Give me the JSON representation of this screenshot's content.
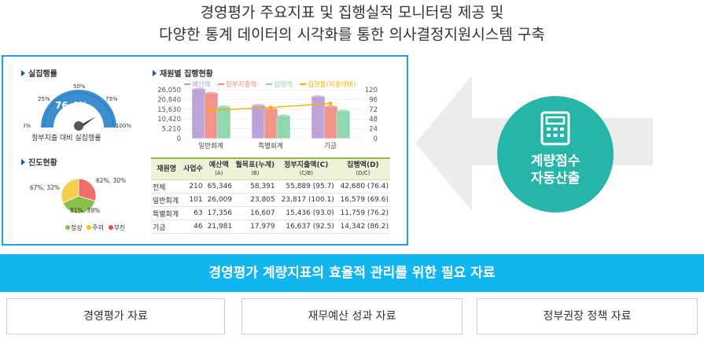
{
  "headline": {
    "line1": "경영평가 주요지표 및 집행실적 모니터링 제공 및",
    "line2": "다양한 통계 데이터의 시각화를 통한 의사결정지원시스템 구축"
  },
  "dashboard": {
    "gauge": {
      "title": "실집행률",
      "value_label": "76.4%",
      "value": 76.4,
      "ticks": [
        "0%",
        "25%",
        "50%",
        "75%",
        "100%"
      ],
      "caption": "정부지출 대비 실집행률"
    },
    "progress": {
      "title": "진도현황",
      "slices": [
        {
          "label": "62%, 30%",
          "value": 30,
          "color": "#f06e6a"
        },
        {
          "label": "81%, 39%",
          "value": 39,
          "color": "#8cc04c"
        },
        {
          "label": "67%, 32%",
          "value": 32,
          "color": "#f6d04d"
        }
      ],
      "legend": [
        {
          "name": "정상",
          "color": "#8cc04c"
        },
        {
          "name": "주의",
          "color": "#f6c400"
        },
        {
          "name": "부진",
          "color": "#e84b47"
        }
      ]
    },
    "chart_data": {
      "type": "bar",
      "title": "재원별 집행현황",
      "categories": [
        "일반회계",
        "특별회계",
        "기금"
      ],
      "series": [
        {
          "name": "예산액",
          "values": [
            26009,
            17356,
            21981
          ],
          "color": "#b59ad6"
        },
        {
          "name": "정부지출액",
          "values": [
            23817,
            15436,
            16637
          ],
          "color": "#f08a80"
        },
        {
          "name": "집행액",
          "values": [
            16579,
            11759,
            14342
          ],
          "color": "#86d3a8"
        }
      ],
      "line_series": {
        "name": "집행률(지출대비)",
        "values": [
          69.6,
          76.2,
          86.2
        ],
        "color": "#f6b400"
      },
      "y_ticks": [
        "26,050",
        "20,840",
        "15,630",
        "10,420",
        "5,210",
        "0"
      ],
      "y2_ticks": [
        "120",
        "96",
        "72",
        "48",
        "24",
        "0"
      ],
      "ylim": [
        0,
        26050
      ],
      "y2lim": [
        0,
        120
      ]
    },
    "table": {
      "headers": [
        {
          "main": "재원명",
          "sub": ""
        },
        {
          "main": "사업수",
          "sub": ""
        },
        {
          "main": "예산액",
          "sub": "(A)"
        },
        {
          "main": "월목표(누계)",
          "sub": "(B)"
        },
        {
          "main": "정부지출액(C)",
          "sub": "(C/B)"
        },
        {
          "main": "집행액(D)",
          "sub": "(D/C)"
        }
      ],
      "rows": [
        {
          "name": "전체",
          "count": "210",
          "budget": "65,346",
          "target": "58,391",
          "gov": "55,889 (95.7)",
          "exec": "42,680 (76.4)"
        },
        {
          "name": "일반회계",
          "count": "101",
          "budget": "26,009",
          "target": "23,805",
          "gov": "23,817 (100.1)",
          "exec": "16,579 (69.6)"
        },
        {
          "name": "특별회계",
          "count": "63",
          "budget": "17,356",
          "target": "16,607",
          "gov": "15,436 (93.0)",
          "exec": "11,759 (76.2)"
        },
        {
          "name": "기금",
          "count": "46",
          "budget": "21,981",
          "target": "17,979",
          "gov": "16,637 (92.5)",
          "exec": "14,342 (86.2)"
        }
      ]
    }
  },
  "badge": {
    "line1": "계량점수",
    "line2": "자동산출"
  },
  "banner": "경영평가 계량지표의 효율적 관리를 위한 필요 자료",
  "sources": [
    "경영평가 자료",
    "재무예산 성과 자료",
    "정부권장 정책 자료"
  ],
  "colors": {
    "panel_border": "#1ea0e3",
    "banner": "#12b6ef",
    "badge": "#26b5a8",
    "arrow": "#ececec"
  }
}
